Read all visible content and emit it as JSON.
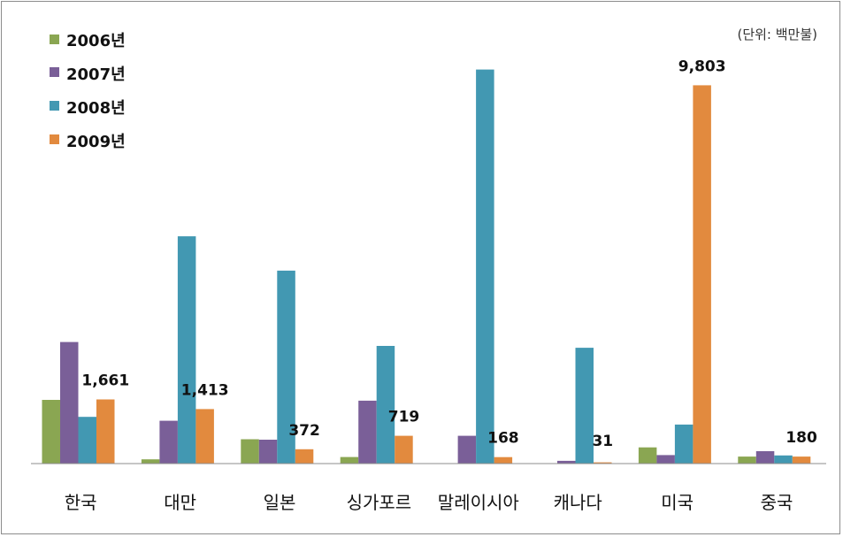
{
  "chart_data": {
    "type": "bar",
    "unit_label": "(단위: 백만불)",
    "categories": [
      "한국",
      "대만",
      "일본",
      "싱가포르",
      "말레이시아",
      "캐나다",
      "미국",
      "중국"
    ],
    "series": [
      {
        "name": "2006년",
        "color": "#8AA652",
        "values": [
          1650,
          110,
          630,
          170,
          0,
          0,
          420,
          180
        ]
      },
      {
        "name": "2007년",
        "color": "#7A5F98",
        "values": [
          3150,
          1110,
          620,
          1630,
          720,
          70,
          220,
          320
        ]
      },
      {
        "name": "2008년",
        "color": "#4298B2",
        "values": [
          1210,
          5890,
          5000,
          3050,
          10210,
          3000,
          1010,
          210
        ]
      },
      {
        "name": "2009년",
        "color": "#E28A3E",
        "values": [
          1661,
          1413,
          372,
          719,
          168,
          31,
          9803,
          180
        ]
      }
    ],
    "data_labels": [
      "1,661",
      "1,413",
      "372",
      "719",
      "168",
      "31",
      "9,803",
      "180"
    ],
    "ylim": [
      0,
      10500
    ],
    "grid": false,
    "legend_position": "top-left"
  }
}
